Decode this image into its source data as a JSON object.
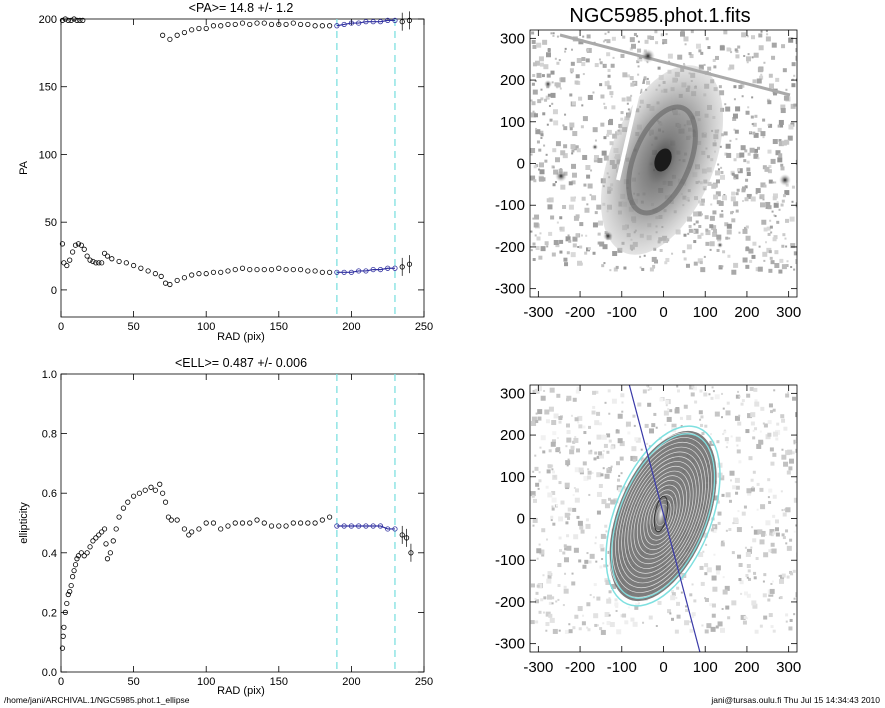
{
  "footer": {
    "path": "/home/jani/ARCHIVAL.1/NGC5985.phot.1_ellipse",
    "user": "jani@tursas.oulu.fi  Thu Jul 15 14:34:43 2010"
  },
  "chart_data": [
    {
      "type": "scatter",
      "title": "<PA>=  14.8 +/-   1.2",
      "xlabel": "RAD (pix)",
      "ylabel": "PA",
      "xlim": [
        0,
        250
      ],
      "ylim": [
        -20,
        200
      ],
      "xticks": [
        "0",
        "50",
        "100",
        "150",
        "200",
        "250"
      ],
      "yticks": [
        "0",
        "50",
        "100",
        "150",
        "200"
      ],
      "fit_range": [
        190,
        230
      ],
      "series": [
        {
          "values": [
            [
              1,
              34
            ],
            [
              2,
              20
            ],
            [
              4,
              18
            ],
            [
              6,
              22
            ],
            [
              8,
              28
            ],
            [
              10,
              33
            ],
            [
              12,
              34
            ],
            [
              14,
              33
            ],
            [
              16,
              30
            ],
            [
              18,
              25
            ],
            [
              20,
              22
            ],
            [
              22,
              21
            ],
            [
              24,
              20
            ],
            [
              26,
              20
            ],
            [
              28,
              20
            ],
            [
              30,
              27
            ],
            [
              32,
              25
            ],
            [
              35,
              23
            ],
            [
              40,
              21
            ],
            [
              45,
              20
            ],
            [
              50,
              18
            ],
            [
              55,
              16
            ],
            [
              60,
              14
            ],
            [
              65,
              12
            ],
            [
              69,
              10
            ],
            [
              72,
              5
            ],
            [
              75,
              4
            ],
            [
              80,
              7
            ],
            [
              85,
              9
            ],
            [
              90,
              11
            ],
            [
              95,
              12
            ],
            [
              100,
              12
            ],
            [
              105,
              13
            ],
            [
              110,
              13
            ],
            [
              115,
              14
            ],
            [
              120,
              15
            ],
            [
              125,
              16
            ],
            [
              130,
              15
            ],
            [
              135,
              15
            ],
            [
              140,
              15
            ],
            [
              145,
              15
            ],
            [
              150,
              16
            ],
            [
              155,
              15
            ],
            [
              160,
              15
            ],
            [
              165,
              15
            ],
            [
              170,
              14
            ],
            [
              175,
              14
            ],
            [
              180,
              13
            ],
            [
              185,
              13
            ],
            [
              190,
              13
            ],
            [
              195,
              13
            ],
            [
              200,
              13
            ],
            [
              205,
              14
            ],
            [
              210,
              14
            ],
            [
              215,
              15
            ],
            [
              220,
              15
            ],
            [
              225,
              16
            ],
            [
              230,
              16
            ],
            [
              235,
              17
            ],
            [
              240,
              19
            ]
          ]
        },
        {
          "values": [
            [
              1,
              199
            ],
            [
              3,
              200
            ],
            [
              5,
              199
            ],
            [
              7,
              199
            ],
            [
              9,
              200
            ],
            [
              11,
              199
            ],
            [
              13,
              199
            ],
            [
              15,
              199
            ],
            [
              70,
              188
            ],
            [
              75,
              185
            ],
            [
              80,
              188
            ],
            [
              85,
              190
            ],
            [
              90,
              192
            ],
            [
              95,
              193
            ],
            [
              100,
              193
            ],
            [
              105,
              195
            ],
            [
              110,
              195
            ],
            [
              115,
              196
            ],
            [
              120,
              196
            ],
            [
              125,
              197
            ],
            [
              130,
              196
            ],
            [
              135,
              197
            ],
            [
              140,
              197
            ],
            [
              145,
              196
            ],
            [
              150,
              196
            ],
            [
              155,
              196
            ],
            [
              160,
              197
            ],
            [
              165,
              196
            ],
            [
              170,
              196
            ],
            [
              175,
              195
            ],
            [
              180,
              195
            ],
            [
              185,
              195
            ],
            [
              190,
              195
            ],
            [
              195,
              196
            ],
            [
              200,
              197
            ],
            [
              205,
              197
            ],
            [
              210,
              198
            ],
            [
              215,
              198
            ],
            [
              220,
              198
            ],
            [
              225,
              199
            ],
            [
              230,
              199
            ],
            [
              235,
              198
            ],
            [
              240,
              199
            ]
          ]
        }
      ]
    },
    {
      "type": "scatter",
      "title": "<ELL>= 0.487 +/-  0.006",
      "xlabel": "RAD (pix)",
      "ylabel": "ellipticity",
      "xlim": [
        0,
        250
      ],
      "ylim": [
        0,
        1.0
      ],
      "xticks": [
        "0",
        "50",
        "100",
        "150",
        "200",
        "250"
      ],
      "yticks": [
        "0.0",
        "0.2",
        "0.4",
        "0.6",
        "0.8",
        "1.0"
      ],
      "fit_range": [
        190,
        230
      ],
      "series": [
        {
          "values": [
            [
              1,
              0.08
            ],
            [
              1.5,
              0.12
            ],
            [
              2,
              0.15
            ],
            [
              3,
              0.2
            ],
            [
              4,
              0.23
            ],
            [
              5,
              0.26
            ],
            [
              6,
              0.27
            ],
            [
              7,
              0.29
            ],
            [
              8,
              0.32
            ],
            [
              9,
              0.34
            ],
            [
              10,
              0.36
            ],
            [
              11,
              0.38
            ],
            [
              12,
              0.39
            ],
            [
              14,
              0.4
            ],
            [
              16,
              0.39
            ],
            [
              18,
              0.4
            ],
            [
              20,
              0.42
            ],
            [
              22,
              0.44
            ],
            [
              24,
              0.45
            ],
            [
              26,
              0.46
            ],
            [
              28,
              0.47
            ],
            [
              30,
              0.48
            ],
            [
              31,
              0.43
            ],
            [
              32,
              0.38
            ],
            [
              34,
              0.4
            ],
            [
              36,
              0.44
            ],
            [
              38,
              0.48
            ],
            [
              40,
              0.52
            ],
            [
              43,
              0.55
            ],
            [
              46,
              0.57
            ],
            [
              50,
              0.59
            ],
            [
              54,
              0.6
            ],
            [
              58,
              0.61
            ],
            [
              62,
              0.62
            ],
            [
              65,
              0.61
            ],
            [
              68,
              0.63
            ],
            [
              70,
              0.6
            ],
            [
              72,
              0.57
            ],
            [
              74,
              0.52
            ],
            [
              76,
              0.51
            ],
            [
              80,
              0.51
            ],
            [
              85,
              0.48
            ],
            [
              88,
              0.46
            ],
            [
              90,
              0.47
            ],
            [
              95,
              0.48
            ],
            [
              100,
              0.5
            ],
            [
              105,
              0.5
            ],
            [
              110,
              0.48
            ],
            [
              115,
              0.49
            ],
            [
              120,
              0.5
            ],
            [
              125,
              0.5
            ],
            [
              130,
              0.5
            ],
            [
              135,
              0.51
            ],
            [
              140,
              0.5
            ],
            [
              145,
              0.49
            ],
            [
              150,
              0.49
            ],
            [
              155,
              0.49
            ],
            [
              160,
              0.5
            ],
            [
              165,
              0.5
            ],
            [
              170,
              0.5
            ],
            [
              175,
              0.5
            ],
            [
              180,
              0.51
            ],
            [
              185,
              0.52
            ],
            [
              190,
              0.49
            ],
            [
              195,
              0.49
            ],
            [
              200,
              0.49
            ],
            [
              205,
              0.49
            ],
            [
              210,
              0.49
            ],
            [
              215,
              0.49
            ],
            [
              220,
              0.49
            ],
            [
              225,
              0.48
            ],
            [
              230,
              0.48
            ],
            [
              235,
              0.46
            ],
            [
              238,
              0.45
            ],
            [
              241,
              0.4
            ]
          ]
        }
      ]
    },
    {
      "type": "heatmap",
      "title": "NGC5985.phot.1.fits",
      "xlim": [
        -320,
        320
      ],
      "ylim": [
        -320,
        320
      ],
      "xticks": [
        "-300",
        "-200",
        "-100",
        "0",
        "100",
        "200",
        "300"
      ],
      "yticks": [
        "-300",
        "-200",
        "-100",
        "0",
        "100",
        "200",
        "300"
      ]
    },
    {
      "type": "heatmap",
      "title": "",
      "xlim": [
        -320,
        320
      ],
      "ylim": [
        -320,
        320
      ],
      "xticks": [
        "-300",
        "-200",
        "-100",
        "0",
        "100",
        "200",
        "300"
      ],
      "yticks": [
        "-300",
        "-200",
        "-100",
        "0",
        "100",
        "200",
        "300"
      ]
    }
  ]
}
